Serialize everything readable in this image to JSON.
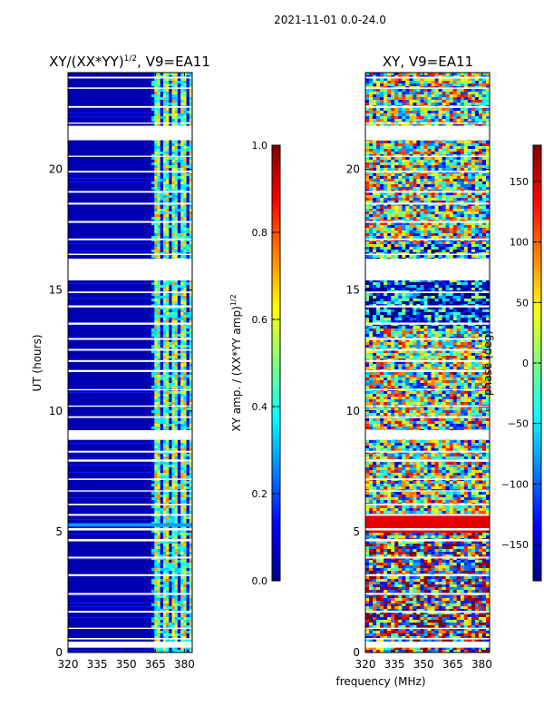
{
  "suptitle": "2021-11-01 0.0-24.0",
  "colorscales": {
    "jet": [
      "#00007f",
      "#0000ff",
      "#007fff",
      "#00ffff",
      "#7fff7f",
      "#ffff00",
      "#ff7f00",
      "#ff0000",
      "#7f0000"
    ]
  },
  "chart_data": [
    {
      "type": "heatmap",
      "title": "XY/(XX*YY)",
      "title_sup": "1/2",
      "title_suffix": ", V9=EA11",
      "xlabel": "",
      "ylabel": "UT (hours)",
      "xlim": [
        320,
        384
      ],
      "ylim": [
        0,
        24
      ],
      "xticks": [
        320,
        335,
        350,
        365,
        380
      ],
      "yticks": [
        0,
        5,
        10,
        15,
        20
      ],
      "colorbar": {
        "label": "XY amp. / (XX*YY amp)",
        "label_sup": "1/2",
        "range": [
          0.0,
          1.0
        ],
        "ticks": [
          "0.0",
          "0.2",
          "0.4",
          "0.6",
          "0.8",
          "1.0"
        ],
        "tick_values": [
          0.0,
          0.2,
          0.4,
          0.6,
          0.8,
          1.0
        ]
      },
      "description_values": {
        "background_level": 0.05,
        "active_band_mhz": [
          360,
          384
        ],
        "active_band_level_range": [
          0.2,
          0.75
        ],
        "flag_gaps_ut": [
          [
            0.2,
            0.45
          ],
          [
            15.4,
            16.3
          ],
          [
            21.2,
            21.8
          ],
          [
            8.8,
            9.2
          ]
        ]
      }
    },
    {
      "type": "heatmap",
      "title": "XY, V9=EA11",
      "xlabel": "frequency (MHz)",
      "ylabel": "",
      "xlim": [
        320,
        384
      ],
      "ylim": [
        0,
        24
      ],
      "xticks": [
        320,
        335,
        350,
        365,
        380
      ],
      "yticks": [
        0,
        5,
        10,
        15,
        20
      ],
      "colorbar": {
        "label": "phase (deg)",
        "range": [
          -180,
          180
        ],
        "ticks": [
          "150",
          "100",
          "50",
          "0",
          "−50",
          "−100",
          "−150"
        ],
        "tick_values": [
          150,
          100,
          50,
          0,
          -50,
          -100,
          -150
        ]
      },
      "description_values": {
        "phase_range_deg": [
          -180,
          180
        ],
        "flag_gaps_ut": [
          [
            0.2,
            0.45
          ],
          [
            15.4,
            16.3
          ],
          [
            21.2,
            21.8
          ],
          [
            8.8,
            9.2
          ]
        ]
      }
    }
  ]
}
